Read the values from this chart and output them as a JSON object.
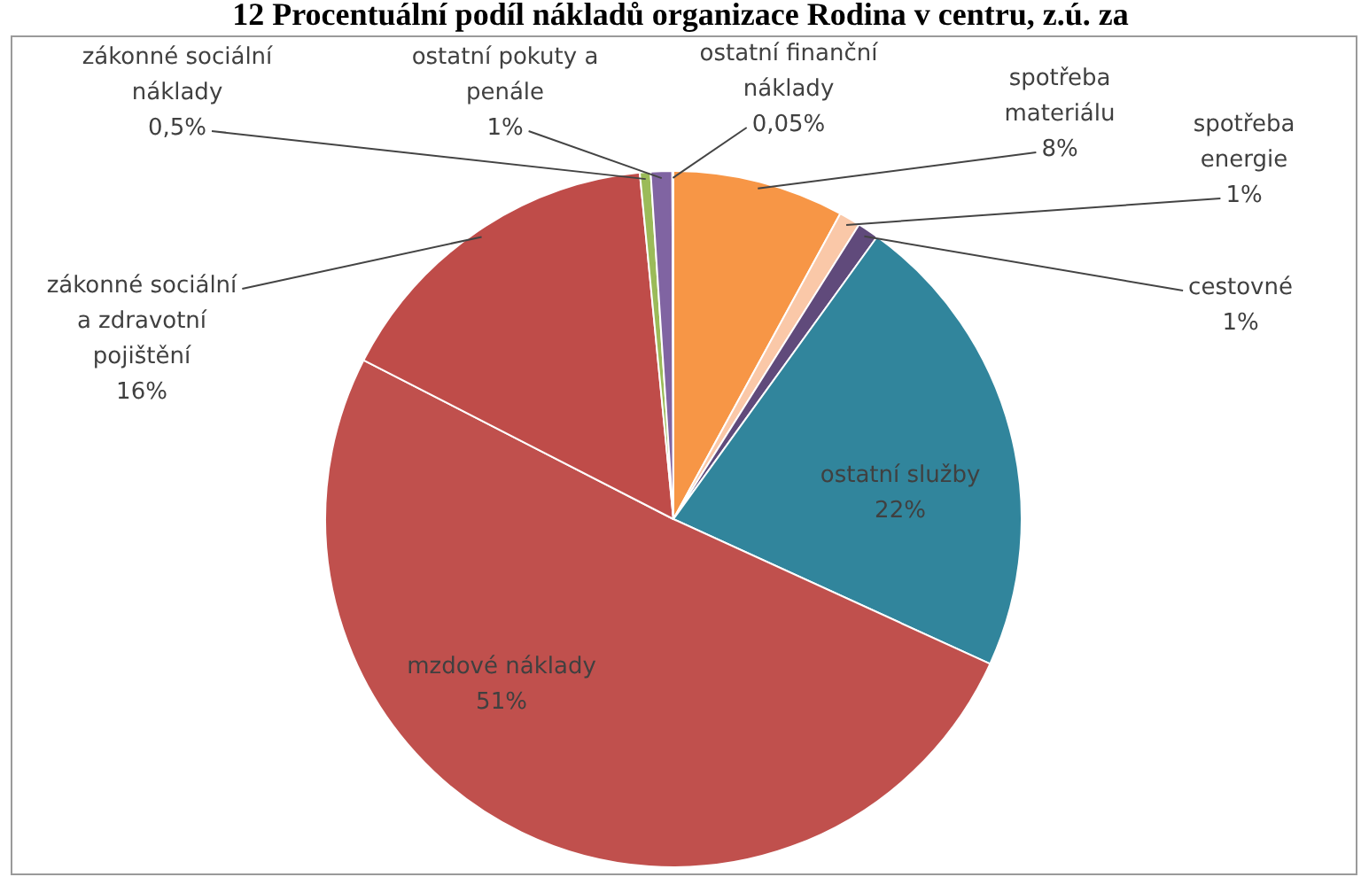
{
  "chart_data": {
    "type": "pie",
    "title": "12 Procentuální podíl nákladů organizace Rodina v centru, z.ú. za",
    "categories": [
      "spotřeba materiálu",
      "spotřeba energie",
      "cestovné",
      "ostatní služby",
      "mzdové náklady",
      "zákonné sociální a zdravotní pojištění",
      "zákonné sociální náklady",
      "ostatní pokuty a penále",
      "ostatní finanční náklady"
    ],
    "values": [
      8,
      1,
      1,
      22,
      51,
      16,
      0.5,
      1,
      0.05
    ],
    "value_labels": [
      "8%",
      "1%",
      "1%",
      "22%",
      "51%",
      "16%",
      "0,5%",
      "1%",
      "0,05%"
    ],
    "colors": [
      "#f79646",
      "#fac8a8",
      "#604a7b",
      "#31859c",
      "#c0504d",
      "#bf4c49",
      "#9bbb59",
      "#8064a2",
      "#4bacc6"
    ],
    "legend": false
  }
}
